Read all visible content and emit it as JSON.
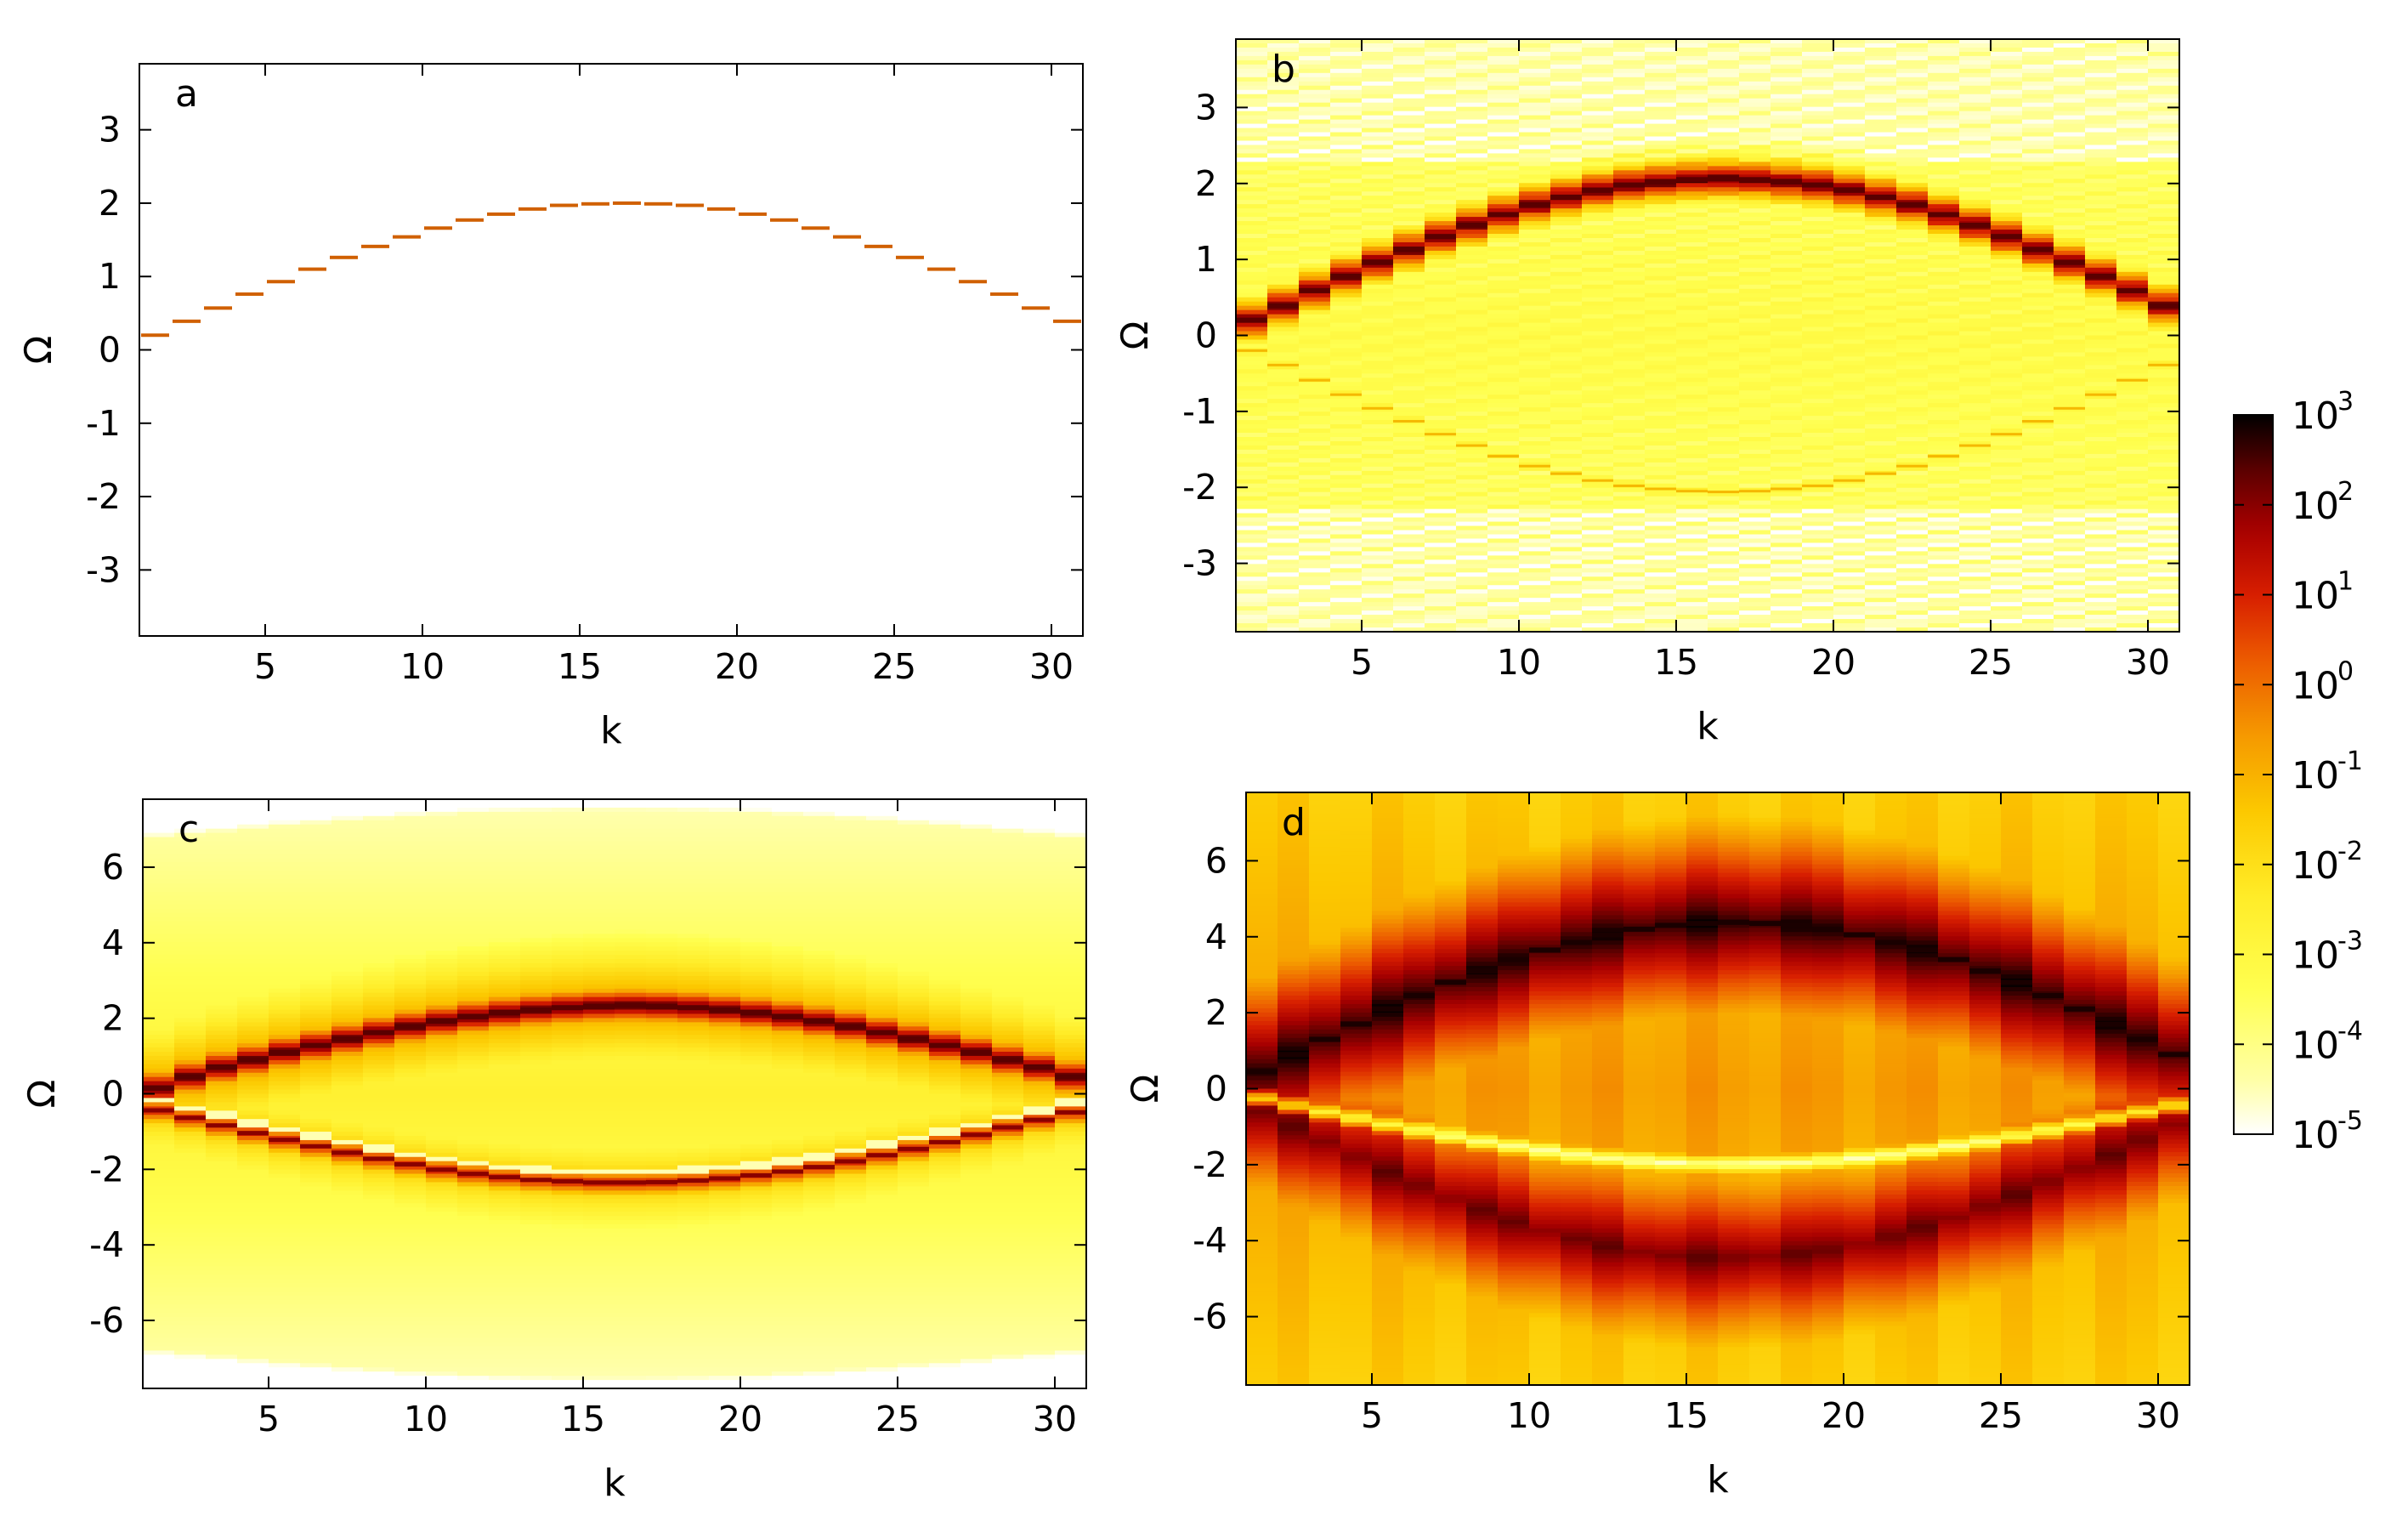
{
  "chart_data": [
    {
      "type": "heatmap",
      "panel_label": "a",
      "xlabel": "k",
      "ylabel": "Ω",
      "xlim": [
        1,
        31
      ],
      "ylim": [
        -3.9,
        3.9
      ],
      "xticks": [
        5,
        10,
        15,
        20,
        25,
        30
      ],
      "yticks": [
        -3,
        -2,
        -1,
        0,
        1,
        2,
        3
      ],
      "k": [
        1,
        2,
        3,
        4,
        5,
        6,
        7,
        8,
        9,
        10,
        11,
        12,
        13,
        14,
        15,
        16,
        17,
        18,
        19,
        20,
        21,
        22,
        23,
        24,
        25,
        26,
        27,
        28,
        29,
        30
      ],
      "upper_band": [
        0.2,
        0.39,
        0.57,
        0.76,
        0.93,
        1.1,
        1.26,
        1.41,
        1.54,
        1.66,
        1.77,
        1.85,
        1.92,
        1.97,
        1.99,
        2.0,
        1.99,
        1.97,
        1.92,
        1.85,
        1.77,
        1.66,
        1.54,
        1.41,
        1.26,
        1.1,
        0.93,
        0.76,
        0.57,
        0.39
      ],
      "lower_band": [],
      "background": "white"
    },
    {
      "type": "heatmap",
      "panel_label": "b",
      "xlabel": "k",
      "ylabel": "Ω",
      "xlim": [
        1,
        31
      ],
      "ylim": [
        -3.9,
        3.9
      ],
      "xticks": [
        5,
        10,
        15,
        20,
        25,
        30
      ],
      "yticks": [
        -3,
        -2,
        -1,
        0,
        1,
        2,
        3
      ],
      "k": [
        1,
        2,
        3,
        4,
        5,
        6,
        7,
        8,
        9,
        10,
        11,
        12,
        13,
        14,
        15,
        16,
        17,
        18,
        19,
        20,
        21,
        22,
        23,
        24,
        25,
        26,
        27,
        28,
        29,
        30
      ],
      "upper_band": [
        0.2,
        0.39,
        0.59,
        0.78,
        0.96,
        1.13,
        1.3,
        1.45,
        1.59,
        1.72,
        1.82,
        1.91,
        1.98,
        2.02,
        2.05,
        2.06,
        2.05,
        2.02,
        1.98,
        1.91,
        1.82,
        1.72,
        1.59,
        1.45,
        1.3,
        1.13,
        0.96,
        0.78,
        0.59,
        0.39
      ],
      "lower_band": [
        -0.2,
        -0.39,
        -0.59,
        -0.78,
        -0.96,
        -1.13,
        -1.3,
        -1.45,
        -1.59,
        -1.72,
        -1.82,
        -1.91,
        -1.98,
        -2.02,
        -2.05,
        -2.06,
        -2.05,
        -2.02,
        -1.98,
        -1.91,
        -1.82,
        -1.72,
        -1.59,
        -1.45,
        -1.3,
        -1.13,
        -0.96,
        -0.78,
        -0.59,
        -0.39
      ],
      "background": "pale-yellow"
    },
    {
      "type": "heatmap",
      "panel_label": "c",
      "xlabel": "k",
      "ylabel": "Ω",
      "xlim": [
        1,
        31
      ],
      "ylim": [
        -7.8,
        7.8
      ],
      "xticks": [
        5,
        10,
        15,
        20,
        25,
        30
      ],
      "yticks": [
        -6,
        -4,
        -2,
        0,
        2,
        4,
        6
      ],
      "k": [
        1,
        2,
        3,
        4,
        5,
        6,
        7,
        8,
        9,
        10,
        11,
        12,
        13,
        14,
        15,
        16,
        17,
        18,
        19,
        20,
        21,
        22,
        23,
        24,
        25,
        26,
        27,
        28,
        29,
        30
      ],
      "upper_band": [
        0.15,
        0.45,
        0.7,
        0.9,
        1.1,
        1.28,
        1.45,
        1.62,
        1.78,
        1.92,
        2.04,
        2.14,
        2.22,
        2.28,
        2.32,
        2.34,
        2.32,
        2.28,
        2.22,
        2.14,
        2.04,
        1.92,
        1.78,
        1.62,
        1.45,
        1.28,
        1.1,
        0.9,
        0.7,
        0.45
      ],
      "lower_band": [
        -0.45,
        -0.65,
        -0.85,
        -1.05,
        -1.23,
        -1.4,
        -1.57,
        -1.73,
        -1.88,
        -2.02,
        -2.13,
        -2.22,
        -2.29,
        -2.33,
        -2.36,
        -2.36,
        -2.35,
        -2.31,
        -2.25,
        -2.17,
        -2.07,
        -1.95,
        -1.8,
        -1.64,
        -1.47,
        -1.29,
        -1.1,
        -0.9,
        -0.7,
        -0.5
      ],
      "background": "yellow"
    },
    {
      "type": "heatmap",
      "panel_label": "d",
      "xlabel": "k",
      "ylabel": "Ω",
      "xlim": [
        1,
        31
      ],
      "ylim": [
        -7.8,
        7.8
      ],
      "xticks": [
        5,
        10,
        15,
        20,
        25,
        30
      ],
      "yticks": [
        -6,
        -4,
        -2,
        0,
        2,
        4,
        6
      ],
      "k": [
        1,
        2,
        3,
        4,
        5,
        6,
        7,
        8,
        9,
        10,
        11,
        12,
        13,
        14,
        15,
        16,
        17,
        18,
        19,
        20,
        21,
        22,
        23,
        24,
        25,
        26,
        27,
        28,
        29,
        30
      ],
      "upper_band": [
        0.45,
        0.9,
        1.3,
        1.7,
        2.1,
        2.45,
        2.8,
        3.1,
        3.4,
        3.65,
        3.85,
        4.05,
        4.2,
        4.3,
        4.35,
        4.38,
        4.35,
        4.3,
        4.2,
        4.05,
        3.85,
        3.65,
        3.4,
        3.1,
        2.8,
        2.45,
        2.1,
        1.7,
        1.3,
        0.9
      ],
      "lower_band": [
        -0.6,
        -1.0,
        -1.4,
        -1.8,
        -2.2,
        -2.55,
        -2.9,
        -3.2,
        -3.5,
        -3.75,
        -3.95,
        -4.15,
        -4.3,
        -4.4,
        -4.45,
        -4.45,
        -4.42,
        -4.35,
        -4.25,
        -4.1,
        -3.9,
        -3.65,
        -3.4,
        -3.1,
        -2.8,
        -2.45,
        -2.1,
        -1.75,
        -1.35,
        -0.95
      ],
      "bright_line": [
        -0.25,
        -0.45,
        -0.62,
        -0.78,
        -0.95,
        -1.1,
        -1.25,
        -1.4,
        -1.52,
        -1.64,
        -1.75,
        -1.83,
        -1.9,
        -1.95,
        -1.98,
        -1.99,
        -1.98,
        -1.95,
        -1.9,
        -1.83,
        -1.75,
        -1.64,
        -1.52,
        -1.4,
        -1.25,
        -1.1,
        -0.95,
        -0.78,
        -0.62,
        -0.45
      ],
      "background": "orange"
    }
  ],
  "colorbar": {
    "scale": "log",
    "range": [
      -5,
      3
    ],
    "tick_base": "10",
    "tick_exponents": [
      "3",
      "2",
      "1",
      "0",
      "-1",
      "-2",
      "-3",
      "-4",
      "-5"
    ],
    "colors": [
      "#000000",
      "#5a0000",
      "#a40000",
      "#d81800",
      "#ec5a00",
      "#f58e00",
      "#fbc300",
      "#fff02a",
      "#ffff86",
      "#ffffff"
    ]
  }
}
